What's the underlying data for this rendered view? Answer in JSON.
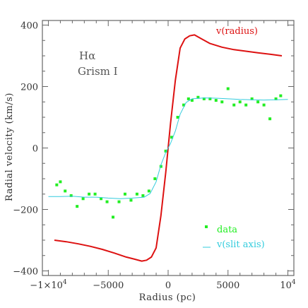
{
  "chart_data": {
    "type": "line",
    "xlabel": "Radius (pc)",
    "ylabel": "Radial velocity (km/s)",
    "xlim": [
      -10500,
      10500
    ],
    "ylim": [
      -415,
      415
    ],
    "x_ticks": [
      {
        "value": -10000,
        "label": "−1×10",
        "sup": "4"
      },
      {
        "value": -5000,
        "label": "−5000",
        "sup": ""
      },
      {
        "value": 0,
        "label": "0",
        "sup": ""
      },
      {
        "value": 5000,
        "label": "5000",
        "sup": ""
      },
      {
        "value": 10000,
        "label": "10",
        "sup": "4"
      }
    ],
    "y_ticks": [
      {
        "value": -400,
        "label": "−400"
      },
      {
        "value": -200,
        "label": "−200"
      },
      {
        "value": 0,
        "label": "0"
      },
      {
        "value": 200,
        "label": "200"
      },
      {
        "value": 400,
        "label": "400"
      }
    ],
    "annotations": [
      "Hα",
      "Grism I"
    ],
    "series": [
      {
        "name": "v(radius)",
        "kind": "line",
        "color": "#dd1111",
        "x": [
          -9500,
          -8500,
          -7500,
          -6500,
          -5500,
          -4500,
          -3500,
          -2800,
          -2200,
          -1800,
          -1400,
          -1000,
          -600,
          -200,
          0,
          200,
          600,
          1000,
          1400,
          1800,
          2200,
          2800,
          3500,
          4500,
          5500,
          6500,
          7500,
          8500,
          9500
        ],
        "y": [
          -300,
          -305,
          -312,
          -320,
          -330,
          -342,
          -355,
          -362,
          -368,
          -365,
          -355,
          -325,
          -220,
          -80,
          0,
          80,
          220,
          325,
          355,
          365,
          368,
          355,
          340,
          328,
          320,
          315,
          310,
          305,
          300
        ]
      },
      {
        "name": "data",
        "kind": "scatter",
        "color": "#22ee22",
        "x": [
          -9300,
          -9000,
          -8600,
          -8100,
          -7600,
          -7100,
          -6600,
          -6100,
          -5600,
          -5100,
          -4600,
          -4100,
          -3600,
          -3100,
          -2600,
          -2100,
          -1600,
          -1100,
          -600,
          -200,
          300,
          800,
          1300,
          1700,
          2000,
          2500,
          3000,
          3500,
          4000,
          4500,
          5000,
          5500,
          6000,
          6500,
          7000,
          7500,
          8000,
          8500,
          9000,
          9400
        ],
        "y": [
          -120,
          -110,
          -140,
          -155,
          -190,
          -165,
          -150,
          -150,
          -165,
          -175,
          -225,
          -175,
          -150,
          -170,
          -150,
          -155,
          -140,
          -100,
          -60,
          -10,
          35,
          100,
          140,
          160,
          155,
          165,
          160,
          160,
          155,
          150,
          193,
          140,
          150,
          140,
          160,
          150,
          140,
          95,
          160,
          170
        ]
      },
      {
        "name": "v(slit axis)",
        "kind": "line",
        "color": "#33ccdd",
        "x": [
          -10000,
          -9000,
          -8000,
          -7000,
          -6000,
          -5000,
          -4000,
          -3000,
          -2000,
          -1500,
          -1000,
          -600,
          -200,
          0,
          200,
          600,
          1000,
          1500,
          2000,
          3000,
          4000,
          5000,
          6000,
          7000,
          8000,
          9000,
          10000
        ],
        "y": [
          -158,
          -158,
          -157,
          -160,
          -160,
          -163,
          -165,
          -163,
          -160,
          -148,
          -110,
          -55,
          -15,
          0,
          15,
          55,
          110,
          148,
          160,
          163,
          162,
          160,
          158,
          157,
          156,
          157,
          158
        ]
      }
    ],
    "legend": {
      "placement": "top-right / bottom-right",
      "items": [
        {
          "label": "v(radius)",
          "color": "#dd1111"
        },
        {
          "label": "data",
          "color": "#22ee22"
        },
        {
          "label": "v(slit axis)",
          "color": "#33ccdd"
        }
      ]
    }
  }
}
